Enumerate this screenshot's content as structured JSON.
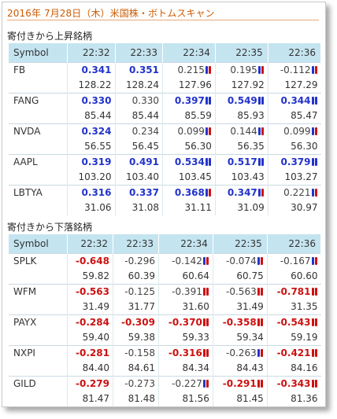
{
  "title": "2016年 7月28日（木）米国株・ボトムスキャン",
  "gainers": {
    "section_title": "寄付きから上昇銘柄",
    "headers": [
      "Symbol",
      "22:32",
      "22:33",
      "22:34",
      "22:35",
      "22:36"
    ],
    "rows": [
      {
        "symbol": "FB",
        "changes": [
          "0.341",
          "0.351",
          "0.215",
          "0.195",
          "-0.112"
        ],
        "dir": [
          "up",
          "up",
          "flat",
          "flat",
          "flat"
        ],
        "bars": [
          "",
          "",
          "mix",
          "mix",
          "mix"
        ],
        "prices": [
          "128.22",
          "128.24",
          "127.96",
          "127.92",
          "127.29"
        ]
      },
      {
        "symbol": "FANG",
        "changes": [
          "0.330",
          "0.330",
          "0.397",
          "0.549",
          "0.344"
        ],
        "dir": [
          "up",
          "flat",
          "up",
          "up",
          "up"
        ],
        "bars": [
          "",
          "",
          "blue",
          "blue",
          "blue"
        ],
        "prices": [
          "85.44",
          "85.44",
          "85.59",
          "85.93",
          "85.47"
        ]
      },
      {
        "symbol": "NVDA",
        "changes": [
          "0.324",
          "0.234",
          "0.099",
          "0.144",
          "0.099"
        ],
        "dir": [
          "up",
          "flat",
          "flat",
          "flat",
          "flat"
        ],
        "bars": [
          "",
          "",
          "mix",
          "mix",
          "mix"
        ],
        "prices": [
          "56.55",
          "56.45",
          "56.30",
          "56.35",
          "56.30"
        ]
      },
      {
        "symbol": "AAPL",
        "changes": [
          "0.319",
          "0.491",
          "0.534",
          "0.517",
          "0.379"
        ],
        "dir": [
          "up",
          "up",
          "up",
          "up",
          "up"
        ],
        "bars": [
          "",
          "",
          "blue",
          "blue",
          "blue"
        ],
        "prices": [
          "103.20",
          "103.40",
          "103.45",
          "103.43",
          "103.27"
        ]
      },
      {
        "symbol": "LBTYA",
        "changes": [
          "0.316",
          "0.337",
          "0.368",
          "0.347",
          "0.221"
        ],
        "dir": [
          "up",
          "up",
          "up",
          "up",
          "flat"
        ],
        "bars": [
          "",
          "",
          "mix",
          "mix",
          "mix"
        ],
        "prices": [
          "31.06",
          "31.08",
          "31.11",
          "31.09",
          "30.97"
        ]
      }
    ]
  },
  "losers": {
    "section_title": "寄付きから下落銘柄",
    "headers": [
      "Symbol",
      "22:32",
      "22:33",
      "22:34",
      "22:35",
      "22:36"
    ],
    "rows": [
      {
        "symbol": "SPLK",
        "changes": [
          "-0.648",
          "-0.296",
          "-0.142",
          "-0.074",
          "-0.167"
        ],
        "dir": [
          "down",
          "flat",
          "flat",
          "flat",
          "flat"
        ],
        "bars": [
          "",
          "",
          "mix",
          "mix",
          "mix"
        ],
        "prices": [
          "59.82",
          "60.39",
          "60.64",
          "60.75",
          "60.60"
        ]
      },
      {
        "symbol": "WFM",
        "changes": [
          "-0.563",
          "-0.125",
          "-0.391",
          "-0.563",
          "-0.781"
        ],
        "dir": [
          "down",
          "flat",
          "flat",
          "flat",
          "down"
        ],
        "bars": [
          "",
          "",
          "red",
          "red",
          "red"
        ],
        "prices": [
          "31.49",
          "31.77",
          "31.60",
          "31.49",
          "31.35"
        ]
      },
      {
        "symbol": "PAYX",
        "changes": [
          "-0.284",
          "-0.309",
          "-0.370",
          "-0.358",
          "-0.543"
        ],
        "dir": [
          "down",
          "down",
          "down",
          "down",
          "down"
        ],
        "bars": [
          "",
          "",
          "red",
          "red",
          "red"
        ],
        "prices": [
          "59.40",
          "59.38",
          "59.33",
          "59.34",
          "59.19"
        ]
      },
      {
        "symbol": "NXPI",
        "changes": [
          "-0.281",
          "-0.158",
          "-0.316",
          "-0.263",
          "-0.421"
        ],
        "dir": [
          "down",
          "flat",
          "down",
          "flat",
          "down"
        ],
        "bars": [
          "",
          "",
          "red",
          "mix",
          "red"
        ],
        "prices": [
          "84.40",
          "84.61",
          "84.34",
          "84.43",
          "84.16"
        ]
      },
      {
        "symbol": "GILD",
        "changes": [
          "-0.279",
          "-0.273",
          "-0.227",
          "-0.291",
          "-0.343"
        ],
        "dir": [
          "down",
          "flat",
          "flat",
          "down",
          "down"
        ],
        "bars": [
          "",
          "",
          "mix",
          "red",
          "red"
        ],
        "prices": [
          "81.47",
          "81.48",
          "81.56",
          "81.45",
          "81.36"
        ]
      }
    ]
  },
  "colors": {
    "accent": "#cc5a00",
    "header_bg": "#c4e4f0",
    "up": "#2233cc",
    "down": "#cc1111"
  }
}
